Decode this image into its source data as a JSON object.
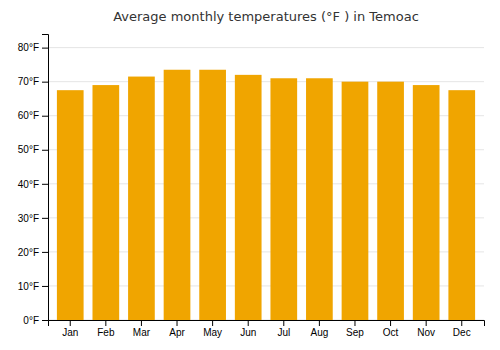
{
  "chart_data": {
    "type": "bar",
    "title": "Average monthly temperatures (°F ) in Temoac",
    "categories": [
      "Jan",
      "Feb",
      "Mar",
      "Apr",
      "May",
      "Jun",
      "Jul",
      "Aug",
      "Sep",
      "Oct",
      "Nov",
      "Dec"
    ],
    "values": [
      67.5,
      69.0,
      71.5,
      73.5,
      73.5,
      72.0,
      71.0,
      71.0,
      70.0,
      70.0,
      69.0,
      67.5
    ],
    "color": "#F0A500",
    "ylim": [
      0,
      84
    ],
    "yticks": [
      {
        "value": 0,
        "label": "0°F"
      },
      {
        "value": 10,
        "label": "10°F"
      },
      {
        "value": 20,
        "label": "20°F"
      },
      {
        "value": 30,
        "label": "30°F"
      },
      {
        "value": 40,
        "label": "40°F"
      },
      {
        "value": 50,
        "label": "50°F"
      },
      {
        "value": 60,
        "label": "60°F"
      },
      {
        "value": 70,
        "label": "70°F"
      },
      {
        "value": 80,
        "label": "80°F"
      }
    ],
    "grid": true
  }
}
